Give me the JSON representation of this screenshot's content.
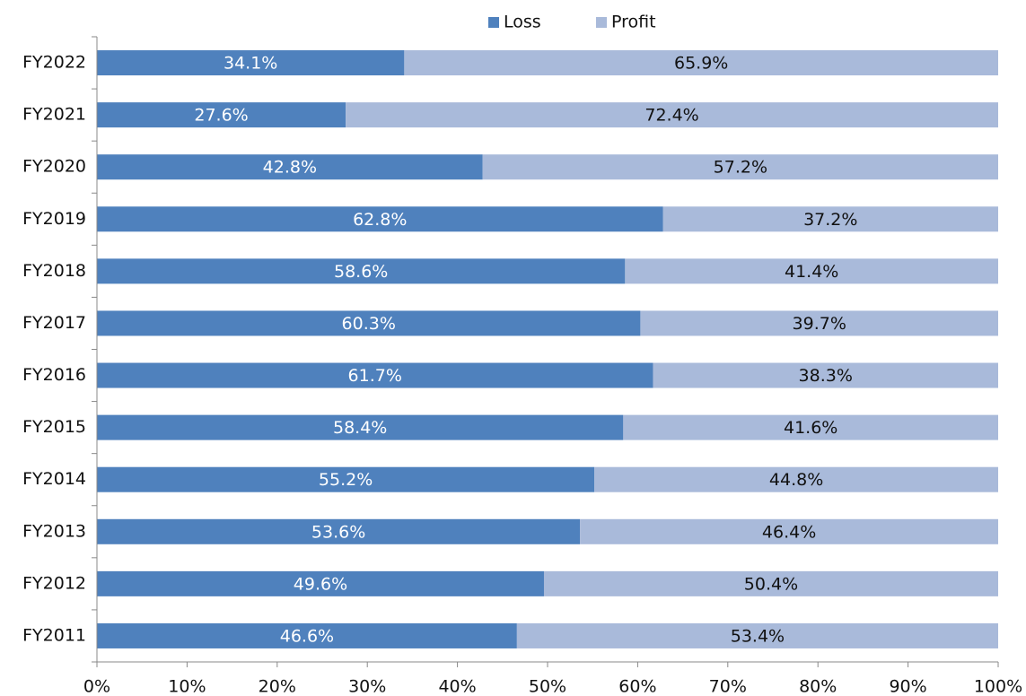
{
  "chart_data": {
    "type": "stacked-barh",
    "categories": [
      "FY2022",
      "FY2021",
      "FY2020",
      "FY2019",
      "FY2018",
      "FY2017",
      "FY2016",
      "FY2015",
      "FY2014",
      "FY2013",
      "FY2012",
      "FY2011"
    ],
    "series": [
      {
        "name": "Loss",
        "color": "#4f81bd",
        "values": [
          34.1,
          27.6,
          42.8,
          62.8,
          58.6,
          60.3,
          61.7,
          58.4,
          55.2,
          53.6,
          49.6,
          46.6
        ],
        "value_labels": [
          "34.1%",
          "27.6%",
          "42.8%",
          "62.8%",
          "58.6%",
          "60.3%",
          "61.7%",
          "58.4%",
          "55.2%",
          "53.6%",
          "49.6%",
          "46.6%"
        ]
      },
      {
        "name": "Profit",
        "color": "#a9bada",
        "values": [
          65.9,
          72.4,
          57.2,
          37.2,
          41.4,
          39.7,
          38.3,
          41.6,
          44.8,
          46.4,
          50.4,
          53.4
        ],
        "value_labels": [
          "65.9%",
          "72.4%",
          "57.2%",
          "37.2%",
          "41.4%",
          "39.7%",
          "38.3%",
          "41.6%",
          "44.8%",
          "46.4%",
          "50.4%",
          "53.4%"
        ]
      }
    ],
    "xlim": [
      0,
      100
    ],
    "xticks": [
      {
        "value": 0,
        "label": "0%"
      },
      {
        "value": 10,
        "label": "10%"
      },
      {
        "value": 20,
        "label": "20%"
      },
      {
        "value": 30,
        "label": "30%"
      },
      {
        "value": 40,
        "label": "40%"
      },
      {
        "value": 50,
        "label": "50%"
      },
      {
        "value": 60,
        "label": "60%"
      },
      {
        "value": 70,
        "label": "70%"
      },
      {
        "value": 80,
        "label": "80%"
      },
      {
        "value": 90,
        "label": "90%"
      },
      {
        "value": 100,
        "label": "100%"
      }
    ],
    "legend": "top"
  }
}
